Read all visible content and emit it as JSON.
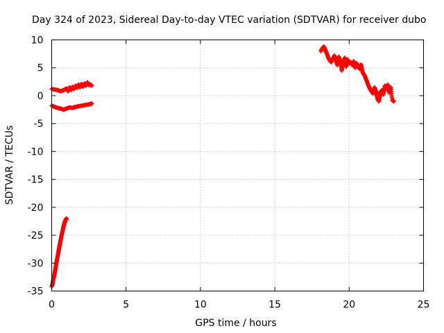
{
  "chart_data": {
    "type": "scatter",
    "title": "Day 324 of 2023, Sidereal Day-to-day VTEC variation (SDTVAR) for receiver dubo",
    "xlabel": "GPS time / hours",
    "ylabel": "SDTVAR / TECUs",
    "xlim": [
      0,
      25
    ],
    "ylim": [
      -35,
      10
    ],
    "xticks": [
      "0",
      "5",
      "10",
      "15",
      "20",
      "25"
    ],
    "yticks": [
      "10",
      "5",
      "0",
      "-5",
      "-10",
      "-15",
      "-20",
      "-25",
      "-30",
      "-35"
    ],
    "grid": true,
    "marker": "+",
    "series": [
      {
        "name": "SDTVAR",
        "color": "#ff0000",
        "segments": [
          {
            "label": "steep rise near start",
            "points": [
              [
                0.0,
                -34.2
              ],
              [
                0.05,
                -33.8
              ],
              [
                0.1,
                -33.0
              ],
              [
                0.15,
                -32.5
              ],
              [
                0.2,
                -31.8
              ],
              [
                0.25,
                -31.0
              ],
              [
                0.3,
                -30.2
              ],
              [
                0.35,
                -29.5
              ],
              [
                0.4,
                -28.8
              ],
              [
                0.45,
                -28.0
              ],
              [
                0.5,
                -27.3
              ],
              [
                0.55,
                -26.6
              ],
              [
                0.6,
                -25.9
              ],
              [
                0.65,
                -25.2
              ],
              [
                0.7,
                -24.6
              ],
              [
                0.75,
                -24.0
              ],
              [
                0.8,
                -23.4
              ],
              [
                0.85,
                -22.9
              ],
              [
                0.9,
                -22.5
              ],
              [
                0.95,
                -22.2
              ],
              [
                1.0,
                -22.0
              ]
            ]
          },
          {
            "label": "upper band early",
            "points": [
              [
                0.0,
                1.2
              ],
              [
                0.2,
                1.1
              ],
              [
                0.4,
                1.0
              ],
              [
                0.6,
                0.8
              ],
              [
                0.8,
                1.0
              ],
              [
                1.0,
                1.3
              ],
              [
                1.1,
                0.8
              ],
              [
                1.2,
                1.5
              ],
              [
                1.3,
                1.0
              ],
              [
                1.4,
                1.6
              ],
              [
                1.5,
                1.2
              ],
              [
                1.6,
                1.8
              ],
              [
                1.7,
                1.4
              ],
              [
                1.8,
                2.0
              ],
              [
                1.9,
                1.5
              ],
              [
                2.0,
                2.1
              ],
              [
                2.1,
                1.6
              ],
              [
                2.2,
                2.2
              ],
              [
                2.3,
                1.8
              ],
              [
                2.4,
                2.4
              ],
              [
                2.5,
                1.9
              ],
              [
                2.6,
                2.0
              ],
              [
                2.7,
                1.8
              ]
            ]
          },
          {
            "label": "lower band early",
            "points": [
              [
                0.0,
                -1.8
              ],
              [
                0.2,
                -2.0
              ],
              [
                0.4,
                -2.2
              ],
              [
                0.6,
                -2.3
              ],
              [
                0.8,
                -2.5
              ],
              [
                1.0,
                -2.3
              ],
              [
                1.2,
                -2.1
              ],
              [
                1.4,
                -2.2
              ],
              [
                1.6,
                -2.0
              ],
              [
                1.8,
                -1.9
              ],
              [
                2.0,
                -1.8
              ],
              [
                2.2,
                -1.7
              ],
              [
                2.4,
                -1.6
              ],
              [
                2.6,
                -1.5
              ],
              [
                2.7,
                -1.4
              ]
            ]
          },
          {
            "label": "late evening cluster",
            "points": [
              [
                18.1,
                8.0
              ],
              [
                18.2,
                8.5
              ],
              [
                18.3,
                8.8
              ],
              [
                18.4,
                8.2
              ],
              [
                18.5,
                7.5
              ],
              [
                18.6,
                6.8
              ],
              [
                18.7,
                6.3
              ],
              [
                18.8,
                6.0
              ],
              [
                19.0,
                7.2
              ],
              [
                19.1,
                6.5
              ],
              [
                19.2,
                5.5
              ],
              [
                19.3,
                7.0
              ],
              [
                19.4,
                6.2
              ],
              [
                19.5,
                4.5
              ],
              [
                19.6,
                5.8
              ],
              [
                19.7,
                6.8
              ],
              [
                19.8,
                5.2
              ],
              [
                19.9,
                6.5
              ],
              [
                20.0,
                5.8
              ],
              [
                20.1,
                6.0
              ],
              [
                20.2,
                5.5
              ],
              [
                20.3,
                6.2
              ],
              [
                20.4,
                5.0
              ],
              [
                20.5,
                5.8
              ],
              [
                20.6,
                5.3
              ],
              [
                20.7,
                4.8
              ],
              [
                20.8,
                5.6
              ],
              [
                20.9,
                4.2
              ],
              [
                21.0,
                3.8
              ],
              [
                21.1,
                3.2
              ],
              [
                21.2,
                2.5
              ],
              [
                21.3,
                1.8
              ],
              [
                21.4,
                1.2
              ],
              [
                21.5,
                0.8
              ],
              [
                21.6,
                0.4
              ],
              [
                21.7,
                1.5
              ],
              [
                21.8,
                0.8
              ],
              [
                21.9,
                -0.5
              ],
              [
                22.0,
                -1.0
              ],
              [
                22.1,
                0.5
              ],
              [
                22.2,
                1.0
              ],
              [
                22.3,
                0.2
              ],
              [
                22.4,
                1.8
              ],
              [
                22.5,
                1.2
              ],
              [
                22.6,
                2.0
              ],
              [
                22.7,
                0.5
              ],
              [
                22.8,
                1.5
              ],
              [
                22.9,
                -0.8
              ],
              [
                23.0,
                -1.0
              ]
            ]
          }
        ]
      }
    ]
  }
}
